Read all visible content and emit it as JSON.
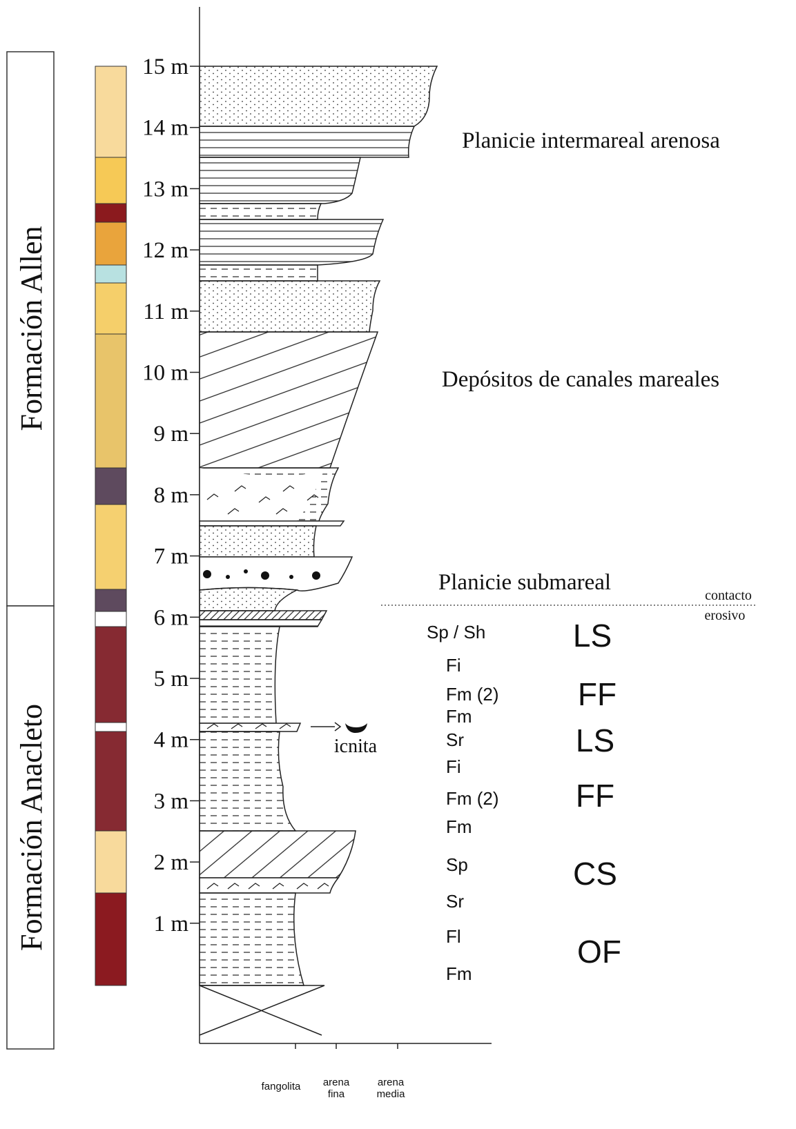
{
  "formations": [
    "Formación Allen",
    "Formación Anacleto"
  ],
  "scale": {
    "labels": [
      "15 m",
      "14 m",
      "13 m",
      "12 m",
      "11 m",
      "10 m",
      "9 m",
      "8 m",
      "7 m",
      "6 m",
      "5 m",
      "4 m",
      "3 m",
      "2 m",
      "1 m"
    ]
  },
  "environments": [
    "Planicie intermareal arenosa",
    "Depósitos de canales mareales",
    "Planicie submareal"
  ],
  "contact": [
    "contacto",
    "erosivo"
  ],
  "facies": [
    "Sp / Sh",
    "Fi",
    "Fm (2)",
    "Fm",
    "Sr",
    "Fi",
    "Fm (2)",
    "Fm",
    "Sp",
    "Sr",
    "Fl",
    "Fm"
  ],
  "associations": [
    "LS",
    "FF",
    "LS",
    "FF",
    "CS",
    "OF"
  ],
  "trace_fossil": "icnita",
  "grain_sizes": [
    [
      "fangolita"
    ],
    [
      "arena",
      "fina"
    ],
    [
      "arena",
      "media"
    ]
  ]
}
